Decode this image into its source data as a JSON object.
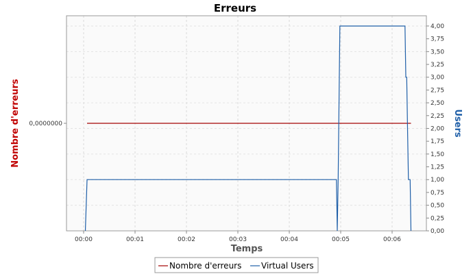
{
  "chart_data": {
    "type": "line",
    "title": "Erreurs",
    "xlabel": "Temps",
    "ylabel_left": "Nombre d'erreurs",
    "ylabel_right": "Users",
    "x_unit": "seconds",
    "x_ticks": [
      {
        "value": 0,
        "label": "00:00"
      },
      {
        "value": 60,
        "label": "00:01"
      },
      {
        "value": 120,
        "label": "00:02"
      },
      {
        "value": 180,
        "label": "00:03"
      },
      {
        "value": 240,
        "label": "00:04"
      },
      {
        "value": 300,
        "label": "00:05"
      },
      {
        "value": 360,
        "label": "00:06"
      }
    ],
    "xlim": [
      -20,
      400
    ],
    "left_axis": {
      "ticks": [
        {
          "value": 0,
          "label": "0,0000000"
        }
      ],
      "ylim": [
        -1,
        1
      ]
    },
    "right_axis": {
      "ylim": [
        0,
        4.2
      ],
      "ticks": [
        {
          "value": 0,
          "label": "0,00"
        },
        {
          "value": 0.25,
          "label": "0,25"
        },
        {
          "value": 0.5,
          "label": "0,50"
        },
        {
          "value": 0.75,
          "label": "0,75"
        },
        {
          "value": 1,
          "label": "1,00"
        },
        {
          "value": 1.25,
          "label": "1,25"
        },
        {
          "value": 1.5,
          "label": "1,50"
        },
        {
          "value": 1.75,
          "label": "1,75"
        },
        {
          "value": 2,
          "label": "2,00"
        },
        {
          "value": 2.25,
          "label": "2,25"
        },
        {
          "value": 2.5,
          "label": "2,50"
        },
        {
          "value": 2.75,
          "label": "2,75"
        },
        {
          "value": 3,
          "label": "3,00"
        },
        {
          "value": 3.25,
          "label": "3,25"
        },
        {
          "value": 3.5,
          "label": "3,50"
        },
        {
          "value": 3.75,
          "label": "3,75"
        },
        {
          "value": 4,
          "label": "4,00"
        }
      ]
    },
    "grid": true,
    "legend_position": "bottom",
    "series": [
      {
        "name": "Nombre d'erreurs",
        "axis": "left",
        "color": "#a30000",
        "points": [
          [
            4,
            0
          ],
          [
            382,
            0
          ]
        ]
      },
      {
        "name": "Virtual Users",
        "axis": "right",
        "color": "#1f5fa8",
        "points": [
          [
            2,
            0
          ],
          [
            4,
            1
          ],
          [
            295,
            1
          ],
          [
            296,
            0
          ],
          [
            297,
            1
          ],
          [
            299,
            4
          ],
          [
            375,
            4
          ],
          [
            376,
            3
          ],
          [
            377,
            3
          ],
          [
            378,
            2
          ],
          [
            379,
            1
          ],
          [
            381,
            1
          ],
          [
            382,
            0
          ]
        ]
      }
    ]
  }
}
